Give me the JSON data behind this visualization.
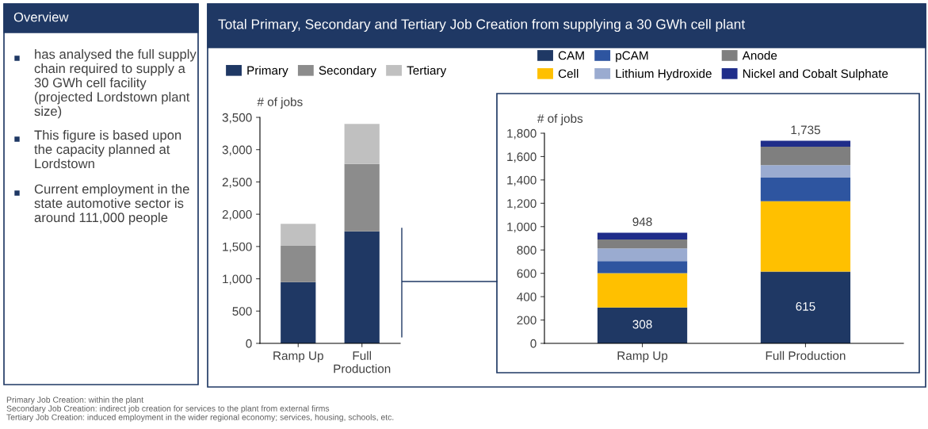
{
  "chart_data": [
    {
      "type": "other",
      "title": "Overview",
      "annotations": [
        "has analysed the full supply chain required to supply a 30 GWh cell facility (projected Lordstown plant size)",
        "This figure is based upon the capacity planned at Lordstown",
        "Current employment in the state automotive sector is around 111,000 people"
      ]
    },
    {
      "type": "bar",
      "title": "Total Primary, Secondary and Tertiary Job Creation from supplying a 30 GWh cell plant",
      "ylabel": "# of jobs",
      "stacked": true,
      "legend": "top",
      "categories": [
        "Ramp Up",
        "Full\nProduction"
      ],
      "series": [
        {
          "name": "Primary",
          "color": "#1f3864",
          "values": [
            948,
            1735
          ]
        },
        {
          "name": "Secondary",
          "color": "#8c8c8c",
          "values": [
            562,
            1045
          ]
        },
        {
          "name": "Tertiary",
          "color": "#c0c0c0",
          "values": [
            340,
            620
          ]
        }
      ],
      "ylim": [
        0,
        3500
      ],
      "yticks": [
        0,
        500,
        {
          "value": 1000,
          "label": "1,000"
        },
        {
          "value": 1500,
          "label": "1,500"
        },
        {
          "value": 2000,
          "label": "2,000"
        },
        {
          "value": 2500,
          "label": "2,500"
        },
        {
          "value": 3000,
          "label": "3,000"
        },
        {
          "value": 3500,
          "label": "3,500"
        }
      ],
      "annotations": [
        "Primary Job Creation: within the plant",
        "Secondary Job Creation: indirect job creation for services to the plant from external firms",
        "Tertiary Job Creation: induced employment in the wider regional economy; services, housing, schools, etc."
      ]
    },
    {
      "type": "bar",
      "ylabel": "# of jobs",
      "stacked": true,
      "legend": "top",
      "categories": [
        "Ramp Up",
        "Full Production"
      ],
      "series": [
        {
          "name": "CAM",
          "color": "#1f3864",
          "values": [
            308,
            615
          ],
          "value_labels": [
            "308",
            "615"
          ]
        },
        {
          "name": "Cell",
          "color": "#ffc000",
          "values": [
            293,
            603
          ]
        },
        {
          "name": "pCAM",
          "color": "#2e55a0",
          "values": [
            104,
            202
          ]
        },
        {
          "name": "Lithium Hydroxide",
          "color": "#9aabd0",
          "values": [
            108,
            106
          ]
        },
        {
          "name": "Anode",
          "color": "#7f7f7f",
          "values": [
            77,
            158
          ]
        },
        {
          "name": "Nickel and Cobalt Sulphate",
          "color": "#1f2d8a",
          "values": [
            58,
            51
          ]
        }
      ],
      "totals": [
        "948",
        "1,735"
      ],
      "ylim": [
        0,
        1800
      ],
      "yticks": [
        0,
        200,
        400,
        600,
        800,
        {
          "value": 1000,
          "label": "1,000"
        },
        {
          "value": 1200,
          "label": "1,200"
        },
        {
          "value": 1400,
          "label": "1,400"
        },
        {
          "value": 1600,
          "label": "1,600"
        },
        {
          "value": 1800,
          "label": "1,800"
        }
      ]
    }
  ]
}
